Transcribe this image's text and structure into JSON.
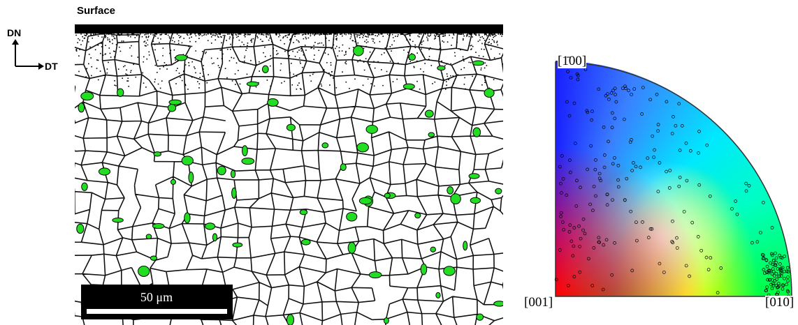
{
  "header": {
    "title": "Surface"
  },
  "axes": {
    "dn": "DN",
    "dt": "DT"
  },
  "scale_bar": {
    "label": "50 μm"
  },
  "ipf": {
    "top": "[1̄00]",
    "left": "[001]",
    "right": "[010]"
  }
}
